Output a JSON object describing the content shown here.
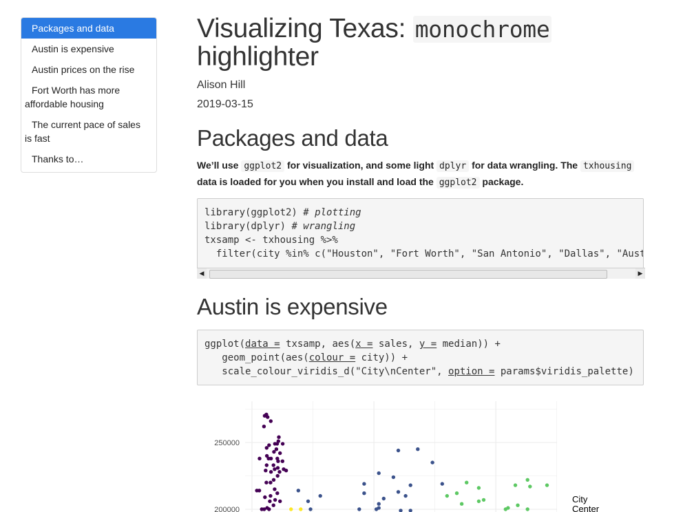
{
  "toc": {
    "items": [
      {
        "label": "Packages and data",
        "active": true
      },
      {
        "label": "Austin is expensive",
        "active": false
      },
      {
        "label": "Austin prices on the rise",
        "active": false
      },
      {
        "label": "Fort Worth has more affordable housing",
        "active": false
      },
      {
        "label": "The current pace of sales is fast",
        "active": false
      },
      {
        "label": "Thanks to…",
        "active": false
      }
    ]
  },
  "header": {
    "title_prefix": "Visualizing Texas: ",
    "title_code": "monochrome",
    "title_suffix": "highlighter",
    "author": "Alison Hill",
    "date": "2019-03-15"
  },
  "section1": {
    "heading": "Packages and data",
    "para": {
      "t1": "We’ll use ",
      "c1": "ggplot2",
      "t2": " for visualization, and some light ",
      "c2": "dplyr",
      "t3": " for data wrangling. The ",
      "c3": "txhousing",
      "t4": " data is loaded for you when you install and load the ",
      "c4": "ggplot2",
      "t5": " package."
    },
    "code": {
      "l1a": "library(ggplot2) ",
      "l1b": "# plotting",
      "l2a": "library(dplyr) ",
      "l2b": "# wrangling",
      "l3": "txsamp <- txhousing %>%",
      "l4": "  filter(city %in% c(\"Houston\", \"Fort Worth\", \"San Antonio\", \"Dallas\", \"Austin\"))"
    }
  },
  "section2": {
    "heading": "Austin is expensive",
    "code": {
      "l1a": "ggplot(",
      "l1b": "data =",
      "l1c": " txsamp, aes(",
      "l1d": "x =",
      "l1e": " sales, ",
      "l1f": "y =",
      "l1g": " median)) +",
      "l2a": "   geom_point(aes(",
      "l2b": "colour =",
      "l2c": " city)) +",
      "l3a": "   scale_colour_viridis_d(\"City\\nCenter\", ",
      "l3b": "option =",
      "l3c": " params$viridis_palette)"
    }
  },
  "colors": {
    "accent": "#2a7ae2",
    "austin": "#440154",
    "dallas": "#3b528b",
    "fort_worth": "#21908c",
    "houston": "#5dc863",
    "san_antonio": "#fde725"
  },
  "chart_data": {
    "type": "scatter",
    "ylabel_ticks": [
      "250000",
      "200000"
    ],
    "legend_title": "City\nCenter",
    "ylim_visible": [
      195000,
      275000
    ],
    "series": [
      {
        "color": "#440154",
        "points": [
          [
            520,
            270000
          ],
          [
            590,
            271000
          ],
          [
            640,
            269000
          ],
          [
            770,
            266000
          ],
          [
            490,
            262000
          ],
          [
            1100,
            254000
          ],
          [
            1080,
            251000
          ],
          [
            1030,
            249000
          ],
          [
            940,
            249000
          ],
          [
            1260,
            249000
          ],
          [
            700,
            248000
          ],
          [
            600,
            246000
          ],
          [
            900,
            243000
          ],
          [
            1000,
            245000
          ],
          [
            1150,
            242000
          ],
          [
            610,
            240000
          ],
          [
            780,
            238000
          ],
          [
            1040,
            238000
          ],
          [
            1070,
            236000
          ],
          [
            1250,
            236000
          ],
          [
            310,
            238000
          ],
          [
            680,
            238000
          ],
          [
            600,
            233000
          ],
          [
            880,
            233000
          ],
          [
            1060,
            231000
          ],
          [
            930,
            230000
          ],
          [
            1300,
            230000
          ],
          [
            560,
            229000
          ],
          [
            780,
            228000
          ],
          [
            1130,
            228000
          ],
          [
            1400,
            229000
          ],
          [
            1050,
            225000
          ],
          [
            890,
            222000
          ],
          [
            760,
            220000
          ],
          [
            590,
            220000
          ],
          [
            930,
            215000
          ],
          [
            300,
            214000
          ],
          [
            200,
            214000
          ],
          [
            1040,
            212000
          ],
          [
            760,
            210000
          ],
          [
            530,
            209000
          ],
          [
            950,
            207000
          ],
          [
            730,
            206000
          ],
          [
            1150,
            206000
          ],
          [
            880,
            203000
          ],
          [
            620,
            201000
          ],
          [
            500,
            200000
          ],
          [
            400,
            200000
          ],
          [
            700,
            200000
          ]
        ]
      },
      {
        "color": "#3b528b",
        "points": [
          [
            6000,
            244000
          ],
          [
            6800,
            245000
          ],
          [
            7400,
            235000
          ],
          [
            5200,
            227000
          ],
          [
            5800,
            224000
          ],
          [
            4600,
            219000
          ],
          [
            6500,
            218000
          ],
          [
            1900,
            214000
          ],
          [
            2800,
            210000
          ],
          [
            4600,
            212000
          ],
          [
            6000,
            213000
          ],
          [
            5400,
            208000
          ],
          [
            6300,
            210000
          ],
          [
            7800,
            219000
          ],
          [
            2300,
            206000
          ],
          [
            5200,
            204000
          ],
          [
            5200,
            201000
          ],
          [
            2400,
            200000
          ],
          [
            4400,
            200000
          ],
          [
            5100,
            200000
          ],
          [
            6100,
            199000
          ],
          [
            6500,
            199000
          ]
        ]
      },
      {
        "color": "#5dc863",
        "points": [
          [
            8800,
            220000
          ],
          [
            9300,
            216000
          ],
          [
            8400,
            212000
          ],
          [
            8000,
            210000
          ],
          [
            10800,
            218000
          ],
          [
            11400,
            217000
          ],
          [
            11300,
            222000
          ],
          [
            12100,
            218000
          ],
          [
            9300,
            206000
          ],
          [
            9500,
            207000
          ],
          [
            8600,
            204000
          ],
          [
            10500,
            201000
          ],
          [
            10900,
            203000
          ],
          [
            11300,
            200000
          ],
          [
            10400,
            200000
          ]
        ]
      },
      {
        "color": "#fde725",
        "points": [
          [
            1600,
            200000
          ],
          [
            2000,
            200000
          ]
        ]
      }
    ]
  }
}
